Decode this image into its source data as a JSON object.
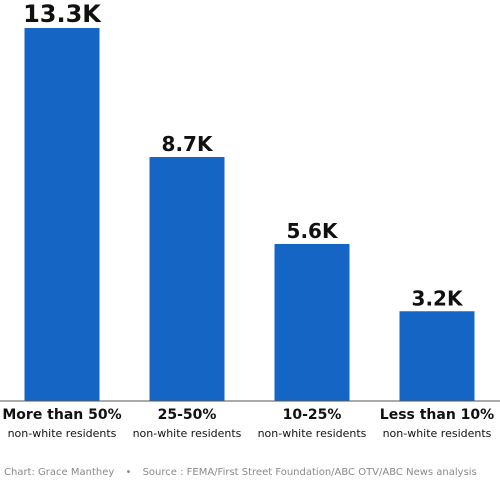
{
  "chart_data": {
    "type": "bar",
    "categories": [
      {
        "label": "More than 50%",
        "sublabel": "non-white residents"
      },
      {
        "label": "25-50%",
        "sublabel": "non-white residents"
      },
      {
        "label": "10-25%",
        "sublabel": "non-white residents"
      },
      {
        "label": "Less than 10%",
        "sublabel": "non-white residents"
      }
    ],
    "values": [
      13.3,
      8.7,
      5.6,
      3.2
    ],
    "value_labels": [
      "13.3K",
      "8.7K",
      "5.6K",
      "3.2K"
    ],
    "ylim": [
      0,
      13.3
    ],
    "grid": false,
    "bar_color": "#1565c4"
  },
  "footer": {
    "credit": "Chart: Grace Manthey",
    "separator": "•",
    "source": "Source : FEMA/First Street Foundation/ABC OTV/ABC News analysis"
  }
}
